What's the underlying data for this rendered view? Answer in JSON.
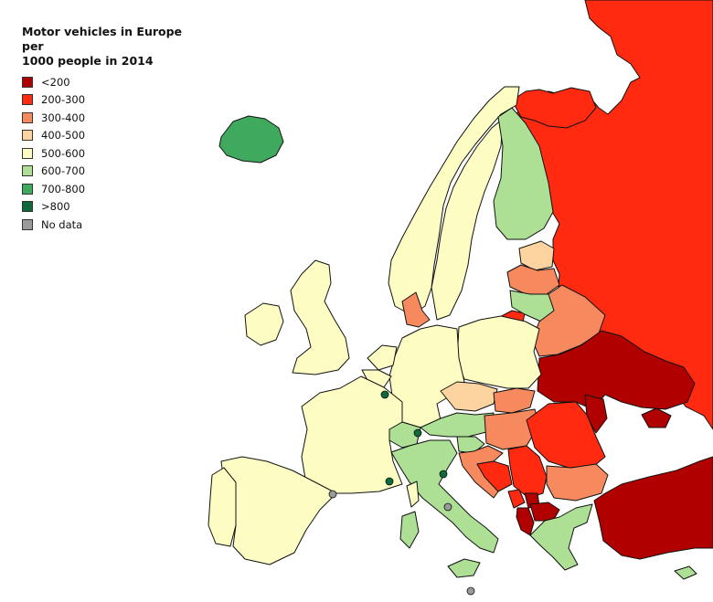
{
  "legend": {
    "title_line1": "Motor vehicles in Europe per",
    "title_line2": "1000 people in 2014",
    "items": [
      {
        "label": "<200",
        "color": "#b00000"
      },
      {
        "label": "200-300",
        "color": "#ff2a10"
      },
      {
        "label": "300-400",
        "color": "#f7895e"
      },
      {
        "label": "400-500",
        "color": "#fdd3a0"
      },
      {
        "label": "500-600",
        "color": "#fdfdc3"
      },
      {
        "label": "600-700",
        "color": "#addf95"
      },
      {
        "label": "700-800",
        "color": "#3faa5e"
      },
      {
        "label": ">800",
        "color": "#0e6a3a"
      },
      {
        "label": "No data",
        "color": "#9a9a9a"
      }
    ]
  },
  "regions": [
    {
      "name": "russia",
      "category": "200-300"
    },
    {
      "name": "russia-northwest",
      "category": "200-300"
    },
    {
      "name": "kaliningrad",
      "category": "200-300"
    },
    {
      "name": "belarus",
      "category": "300-400"
    },
    {
      "name": "ukraine",
      "category": "<200"
    },
    {
      "name": "moldova",
      "category": "<200"
    },
    {
      "name": "crimea",
      "category": "<200"
    },
    {
      "name": "turkey",
      "category": "<200"
    },
    {
      "name": "albania",
      "category": "<200"
    },
    {
      "name": "macedonia",
      "category": "<200"
    },
    {
      "name": "romania",
      "category": "200-300"
    },
    {
      "name": "serbia",
      "category": "200-300"
    },
    {
      "name": "bosnia",
      "category": "200-300"
    },
    {
      "name": "montenegro",
      "category": "200-300"
    },
    {
      "name": "kosovo",
      "category": "<200"
    },
    {
      "name": "bulgaria",
      "category": "300-400"
    },
    {
      "name": "hungary",
      "category": "300-400"
    },
    {
      "name": "slovakia",
      "category": "300-400"
    },
    {
      "name": "croatia",
      "category": "300-400"
    },
    {
      "name": "latvia",
      "category": "300-400"
    },
    {
      "name": "denmark",
      "category": "300-400"
    },
    {
      "name": "czechia",
      "category": "400-500"
    },
    {
      "name": "estonia",
      "category": "400-500"
    },
    {
      "name": "norway",
      "category": "500-600"
    },
    {
      "name": "sweden",
      "category": "500-600"
    },
    {
      "name": "uk",
      "category": "500-600"
    },
    {
      "name": "ireland",
      "category": "500-600"
    },
    {
      "name": "france",
      "category": "500-600"
    },
    {
      "name": "spain",
      "category": "500-600"
    },
    {
      "name": "portugal",
      "category": "500-600"
    },
    {
      "name": "germany",
      "category": "500-600"
    },
    {
      "name": "poland",
      "category": "500-600"
    },
    {
      "name": "netherlands",
      "category": "500-600"
    },
    {
      "name": "lithuania",
      "category": "600-700"
    },
    {
      "name": "finland",
      "category": "600-700"
    },
    {
      "name": "italy",
      "category": "600-700"
    },
    {
      "name": "greece",
      "category": "600-700"
    },
    {
      "name": "austria",
      "category": "600-700"
    },
    {
      "name": "switzerland",
      "category": "600-700"
    },
    {
      "name": "slovenia",
      "category": "600-700"
    },
    {
      "name": "cyprus",
      "category": "600-700"
    },
    {
      "name": "iceland",
      "category": "700-800"
    },
    {
      "name": "belgium",
      "category": "500-600"
    },
    {
      "name": "luxembourg",
      "category": ">800"
    },
    {
      "name": "liechtenstein",
      "category": ">800"
    },
    {
      "name": "monaco",
      "category": ">800"
    },
    {
      "name": "san-marino",
      "category": ">800"
    },
    {
      "name": "andorra",
      "category": "No data"
    },
    {
      "name": "vatican",
      "category": "No data"
    },
    {
      "name": "malta",
      "category": "No data"
    }
  ]
}
